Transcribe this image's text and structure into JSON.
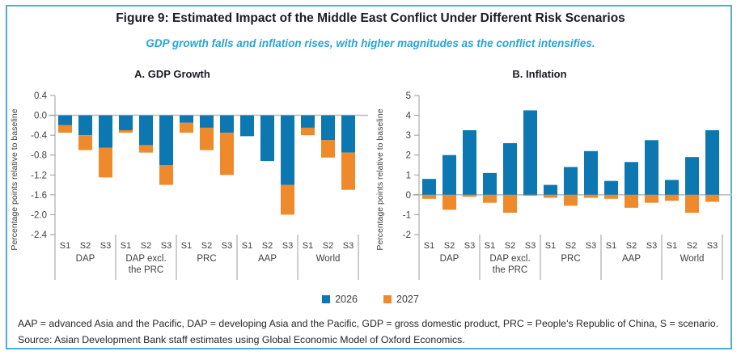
{
  "figure": {
    "title": "Figure 9: Estimated Impact of the Middle East Conflict Under Different Risk Scenarios",
    "subtitle": "GDP growth falls and inflation rises, with higher magnitudes as the conflict intensifies."
  },
  "legend": {
    "items": [
      {
        "label": "2026",
        "color": "#0D77B1"
      },
      {
        "label": "2027",
        "color": "#EF8A2C"
      }
    ]
  },
  "footnotes": {
    "abbreviations": "AAP = advanced Asia and the Pacific, DAP = developing Asia and the Pacific, GDP = gross domestic product, PRC = People's Republic of China, S = scenario.",
    "source": "Source: Asian Development Bank staff estimates using Global Economic Model of Oxford Economics."
  },
  "colors": {
    "border": "#4FADD1",
    "subtitle": "#29A3D7",
    "bar_2026": "#0D77B1",
    "bar_2027": "#EF8A2C",
    "zero_line": "#BDBDBD",
    "axis_line": "#9B9B9B",
    "axis_text": "#414042"
  },
  "chart_data": [
    {
      "type": "bar",
      "panel": "A. GDP Growth",
      "stacked": true,
      "ylabel": "Percentage points relative to baseline",
      "ylim": [
        -2.4,
        0.4
      ],
      "yticks": [
        "0.4",
        "0.0",
        "-0.4",
        "-0.8",
        "-1.2",
        "-1.6",
        "-2.0",
        "-2.4"
      ],
      "groups": [
        [
          "DAP"
        ],
        [
          "DAP excl.",
          "the PRC"
        ],
        [
          "PRC"
        ],
        [
          "AAP"
        ],
        [
          "World"
        ]
      ],
      "scenarios": [
        "S1",
        "S2",
        "S3"
      ],
      "series": [
        {
          "name": "2026",
          "values": [
            -0.2,
            -0.4,
            -0.65,
            -0.3,
            -0.6,
            -1.0,
            -0.15,
            -0.25,
            -0.35,
            -0.42,
            -0.92,
            -1.4,
            -0.25,
            -0.5,
            -0.75
          ]
        },
        {
          "name": "2027",
          "values": [
            -0.15,
            -0.3,
            -0.6,
            -0.05,
            -0.15,
            -0.4,
            -0.2,
            -0.45,
            -0.85,
            0,
            0,
            -0.6,
            -0.15,
            -0.35,
            -0.75
          ]
        }
      ],
      "grid": "zero-line-only",
      "legend_position": "bottom-center-shared"
    },
    {
      "type": "bar",
      "panel": "B. Inflation",
      "stacked": true,
      "ylabel": "Percentage points relative to baseline",
      "ylim": [
        -2,
        5
      ],
      "yticks": [
        "5",
        "4",
        "3",
        "2",
        "1",
        "0",
        "-1",
        "-2"
      ],
      "groups": [
        [
          "DAP"
        ],
        [
          "DAP excl.",
          "the PRC"
        ],
        [
          "PRC"
        ],
        [
          "AAP"
        ],
        [
          "World"
        ]
      ],
      "scenarios": [
        "S1",
        "S2",
        "S3"
      ],
      "series": [
        {
          "name": "2026",
          "values": [
            0.8,
            2.0,
            3.25,
            1.1,
            2.6,
            4.25,
            0.5,
            1.4,
            2.2,
            0.7,
            1.65,
            2.75,
            0.75,
            1.9,
            3.25
          ]
        },
        {
          "name": "2027",
          "values": [
            -0.2,
            -0.75,
            -0.1,
            -0.4,
            -0.9,
            -0.05,
            -0.15,
            -0.55,
            -0.15,
            -0.2,
            -0.65,
            -0.4,
            -0.3,
            -0.9,
            -0.35
          ]
        }
      ],
      "grid": "zero-line-only",
      "legend_position": "bottom-center-shared"
    }
  ]
}
